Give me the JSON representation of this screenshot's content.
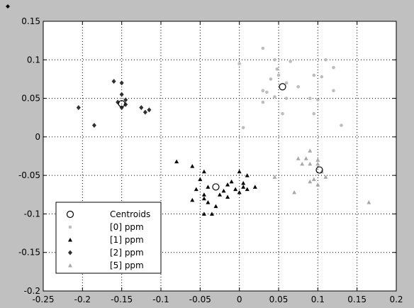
{
  "chart_data": {
    "type": "scatter",
    "title": "",
    "xlabel": "",
    "ylabel": "",
    "xlim": [
      -0.25,
      0.2
    ],
    "ylim": [
      -0.2,
      0.15
    ],
    "grid": true,
    "legend_position": "bottom-left",
    "xticks": [
      "-0.25",
      "-0.2",
      "-0.15",
      "-0.1",
      "-0.05",
      "0",
      "0.05",
      "0.1",
      "0.15",
      "0.2"
    ],
    "yticks": [
      "0.15",
      "0.1",
      "0.05",
      "0",
      "-0.05",
      "-0.1",
      "-0.15",
      "-0.2"
    ],
    "centroids": {
      "name": "Centroids",
      "marker": "circle",
      "color": "#000000",
      "points": [
        [
          0.055,
          0.065
        ],
        [
          -0.15,
          0.043
        ],
        [
          -0.03,
          -0.065
        ],
        [
          0.102,
          -0.043
        ]
      ]
    },
    "series": [
      {
        "name": "[0] ppm",
        "marker": "dot",
        "color": "#bdbdbd",
        "points": [
          [
            0.03,
            0.115
          ],
          [
            0.045,
            0.1
          ],
          [
            0.065,
            0.098
          ],
          [
            0.11,
            0.1
          ],
          [
            0.12,
            0.09
          ],
          [
            0.0,
            0.095
          ],
          [
            0.048,
            0.088
          ],
          [
            0.095,
            0.08
          ],
          [
            0.05,
            0.08
          ],
          [
            0.075,
            0.065
          ],
          [
            0.105,
            0.078
          ],
          [
            0.06,
            0.07
          ],
          [
            0.04,
            0.075
          ],
          [
            0.03,
            0.06
          ],
          [
            0.035,
            0.058
          ],
          [
            0.045,
            0.052
          ],
          [
            0.06,
            0.05
          ],
          [
            0.03,
            0.045
          ],
          [
            0.09,
            0.05
          ],
          [
            0.1,
            0.048
          ],
          [
            0.12,
            0.06
          ],
          [
            0.095,
            0.03
          ],
          [
            0.055,
            0.03
          ],
          [
            0.13,
            0.015
          ],
          [
            0.005,
            0.012
          ]
        ]
      },
      {
        "name": "[1] ppm",
        "marker": "triangle",
        "color": "#000000",
        "points": [
          [
            -0.08,
            -0.032
          ],
          [
            -0.06,
            -0.038
          ],
          [
            -0.045,
            -0.045
          ],
          [
            -0.05,
            -0.055
          ],
          [
            -0.04,
            -0.065
          ],
          [
            -0.055,
            -0.068
          ],
          [
            -0.045,
            -0.075
          ],
          [
            -0.06,
            -0.082
          ],
          [
            -0.04,
            -0.085
          ],
          [
            -0.03,
            -0.09
          ],
          [
            -0.045,
            -0.1
          ],
          [
            -0.035,
            -0.1
          ],
          [
            -0.02,
            -0.07
          ],
          [
            -0.015,
            -0.062
          ],
          [
            -0.01,
            -0.058
          ],
          [
            -0.005,
            -0.068
          ],
          [
            0.0,
            -0.072
          ],
          [
            0.005,
            -0.065
          ],
          [
            0.01,
            -0.068
          ],
          [
            0.02,
            -0.065
          ],
          [
            0.01,
            -0.05
          ],
          [
            0.0,
            -0.045
          ],
          [
            -0.025,
            -0.075
          ],
          [
            -0.015,
            -0.078
          ],
          [
            0.005,
            -0.06
          ],
          [
            -0.045,
            -0.08
          ]
        ]
      },
      {
        "name": "[2] ppm",
        "marker": "diamond",
        "color": "#303030",
        "points": [
          [
            -0.16,
            0.072
          ],
          [
            -0.15,
            0.07
          ],
          [
            -0.15,
            0.055
          ],
          [
            -0.155,
            0.045
          ],
          [
            -0.145,
            0.048
          ],
          [
            -0.145,
            0.042
          ],
          [
            -0.15,
            0.038
          ],
          [
            -0.125,
            0.038
          ],
          [
            -0.12,
            0.032
          ],
          [
            -0.115,
            0.035
          ],
          [
            -0.205,
            0.038
          ],
          [
            -0.185,
            0.015
          ]
        ]
      },
      {
        "name": "[5] ppm",
        "marker": "triangle",
        "color": "#a9a9a9",
        "points": [
          [
            0.09,
            -0.018
          ],
          [
            0.1,
            -0.03
          ],
          [
            0.09,
            -0.035
          ],
          [
            0.085,
            -0.028
          ],
          [
            0.08,
            -0.035
          ],
          [
            0.075,
            -0.028
          ],
          [
            0.105,
            -0.045
          ],
          [
            0.095,
            -0.055
          ],
          [
            0.09,
            -0.058
          ],
          [
            0.1,
            -0.062
          ],
          [
            0.11,
            -0.052
          ],
          [
            0.07,
            -0.072
          ],
          [
            0.045,
            -0.052
          ],
          [
            0.165,
            -0.085
          ],
          [
            0.1,
            -0.035
          ]
        ]
      }
    ]
  }
}
